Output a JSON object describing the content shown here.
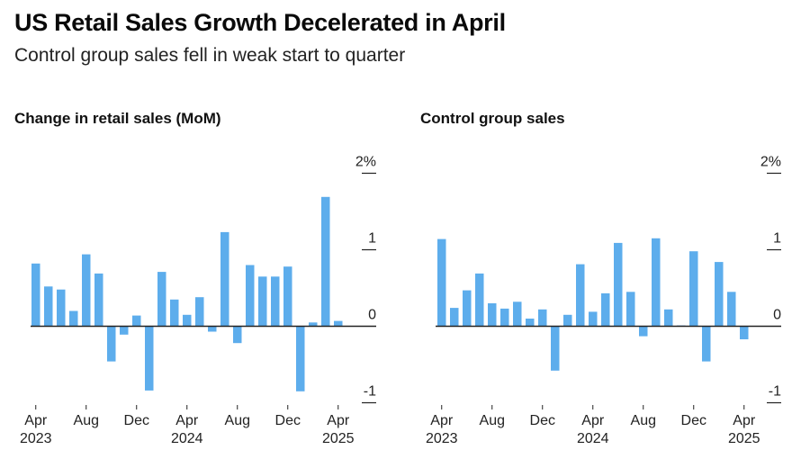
{
  "header": {
    "title": "US Retail Sales Growth Decelerated in April",
    "subtitle": "Control group sales fell in weak start to quarter"
  },
  "colors": {
    "bar": "#5dadec",
    "axis": "#222222",
    "text": "#111111"
  },
  "chart_data": [
    {
      "type": "bar",
      "title": "Change in retail sales (MoM)",
      "xlabel": "",
      "ylabel": "",
      "ylim": [
        -1,
        2
      ],
      "yticks": [
        2,
        1,
        0,
        -1
      ],
      "ytick_labels": [
        "2%",
        "1",
        "0",
        "-1"
      ],
      "y_axis_position": "right",
      "grid": false,
      "categories": [
        "Apr 2023",
        "May 2023",
        "Jun 2023",
        "Jul 2023",
        "Aug 2023",
        "Sep 2023",
        "Oct 2023",
        "Nov 2023",
        "Dec 2023",
        "Jan 2024",
        "Feb 2024",
        "Mar 2024",
        "Apr 2024",
        "May 2024",
        "Jun 2024",
        "Jul 2024",
        "Aug 2024",
        "Sep 2024",
        "Oct 2024",
        "Nov 2024",
        "Dec 2024",
        "Jan 2025",
        "Feb 2025",
        "Mar 2025",
        "Apr 2025"
      ],
      "values": [
        0.82,
        0.52,
        0.48,
        0.2,
        0.94,
        0.69,
        -0.46,
        -0.11,
        0.14,
        -0.84,
        0.71,
        0.35,
        0.15,
        0.38,
        -0.07,
        1.23,
        -0.22,
        0.8,
        0.65,
        0.65,
        0.78,
        -0.85,
        0.05,
        1.69,
        0.07
      ],
      "xtick_labels": [
        {
          "index": 0,
          "line1": "Apr",
          "line2": "2023"
        },
        {
          "index": 4,
          "line1": "Aug",
          "line2": ""
        },
        {
          "index": 8,
          "line1": "Dec",
          "line2": ""
        },
        {
          "index": 12,
          "line1": "Apr",
          "line2": "2024"
        },
        {
          "index": 16,
          "line1": "Aug",
          "line2": ""
        },
        {
          "index": 20,
          "line1": "Dec",
          "line2": ""
        },
        {
          "index": 24,
          "line1": "Apr",
          "line2": "2025"
        }
      ]
    },
    {
      "type": "bar",
      "title": "Control group sales",
      "xlabel": "",
      "ylabel": "",
      "ylim": [
        -1,
        2
      ],
      "yticks": [
        2,
        1,
        0,
        -1
      ],
      "ytick_labels": [
        "2%",
        "1",
        "0",
        "-1"
      ],
      "y_axis_position": "right",
      "grid": false,
      "categories": [
        "Apr 2023",
        "May 2023",
        "Jun 2023",
        "Jul 2023",
        "Aug 2023",
        "Sep 2023",
        "Oct 2023",
        "Nov 2023",
        "Dec 2023",
        "Jan 2024",
        "Feb 2024",
        "Mar 2024",
        "Apr 2024",
        "May 2024",
        "Jun 2024",
        "Jul 2024",
        "Aug 2024",
        "Sep 2024",
        "Oct 2024",
        "Nov 2024",
        "Dec 2024",
        "Jan 2025",
        "Feb 2025",
        "Mar 2025",
        "Apr 2025"
      ],
      "values": [
        1.14,
        0.24,
        0.47,
        0.69,
        0.3,
        0.23,
        0.32,
        0.1,
        0.22,
        -0.58,
        0.15,
        0.81,
        0.19,
        0.43,
        1.09,
        0.45,
        -0.13,
        1.15,
        0.22,
        0.01,
        0.98,
        -0.46,
        0.84,
        0.45,
        -0.17
      ],
      "xtick_labels": [
        {
          "index": 0,
          "line1": "Apr",
          "line2": "2023"
        },
        {
          "index": 4,
          "line1": "Aug",
          "line2": ""
        },
        {
          "index": 8,
          "line1": "Dec",
          "line2": ""
        },
        {
          "index": 12,
          "line1": "Apr",
          "line2": "2024"
        },
        {
          "index": 16,
          "line1": "Aug",
          "line2": ""
        },
        {
          "index": 20,
          "line1": "Dec",
          "line2": ""
        },
        {
          "index": 24,
          "line1": "Apr",
          "line2": "2025"
        }
      ]
    }
  ]
}
